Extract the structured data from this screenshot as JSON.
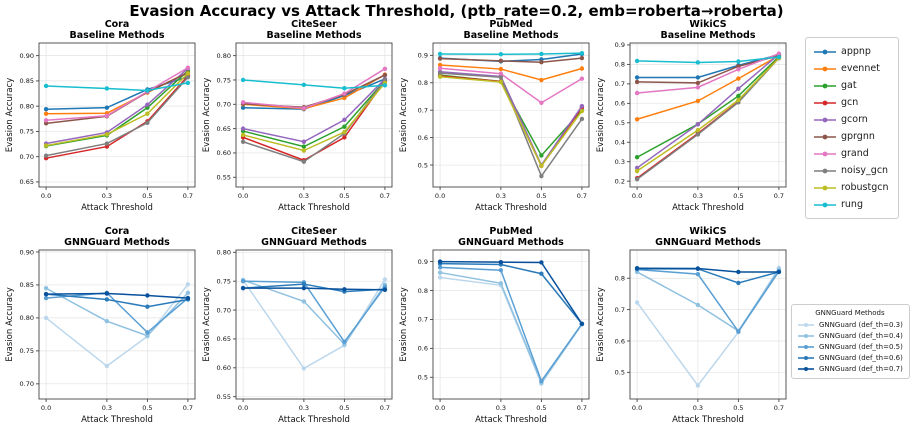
{
  "suptitle": "Evasion Accuracy vs Attack Threshold, (ptb_rate=0.2, emb=roberta→roberta)",
  "axis_labels": {
    "xlabel": "Attack Threshold",
    "ylabel": "Evasion Accuracy"
  },
  "legend_baseline": {
    "entries": [
      {
        "label": "appnp",
        "color": "#1f77b4"
      },
      {
        "label": "evennet",
        "color": "#ff7f0e"
      },
      {
        "label": "gat",
        "color": "#2ca02c"
      },
      {
        "label": "gcn",
        "color": "#d62728"
      },
      {
        "label": "gcorn",
        "color": "#9467bd"
      },
      {
        "label": "gprgnn",
        "color": "#8c564b"
      },
      {
        "label": "grand",
        "color": "#e377c2"
      },
      {
        "label": "noisy_gcn",
        "color": "#7f7f7f"
      },
      {
        "label": "robustgcn",
        "color": "#bcbd22"
      },
      {
        "label": "rung",
        "color": "#17becf"
      }
    ]
  },
  "legend_gnnguard": {
    "title": "GNNGuard Methods",
    "entries": [
      {
        "label": "GNNGuard (def_th=0.3)",
        "color": "#bcd7ec"
      },
      {
        "label": "GNNGuard (def_th=0.4)",
        "color": "#8fc1e0"
      },
      {
        "label": "GNNGuard (def_th=0.5)",
        "color": "#5a9fd4"
      },
      {
        "label": "GNNGuard (def_th=0.6)",
        "color": "#2b7bba"
      },
      {
        "label": "GNNGuard (def_th=0.7)",
        "color": "#08519c"
      }
    ]
  },
  "chart_data": [
    {
      "id": "cora-baseline",
      "type": "line",
      "title": "Cora",
      "subtitle": "Baseline Methods",
      "xlabel": "Attack Threshold",
      "ylabel": "Evasion Accuracy",
      "x": [
        0.0,
        0.3,
        0.5,
        0.7
      ],
      "xtick_labels": [
        "0.0",
        "0.3",
        "0.5",
        "0.7"
      ],
      "ylim": [
        0.64,
        0.925
      ],
      "yticks": [
        0.65,
        0.7,
        0.75,
        0.8,
        0.85,
        0.9
      ],
      "ytick_labels": [
        "0.65",
        "0.70",
        "0.75",
        "0.80",
        "0.85",
        "0.90"
      ],
      "grid": true,
      "legend_position": "outside-right",
      "series": [
        {
          "name": "appnp",
          "color": "#1f77b4",
          "values": [
            0.794,
            0.797,
            0.833,
            0.858
          ]
        },
        {
          "name": "evennet",
          "color": "#ff7f0e",
          "values": [
            0.785,
            0.786,
            0.827,
            0.867
          ]
        },
        {
          "name": "gat",
          "color": "#2ca02c",
          "values": [
            0.721,
            0.742,
            0.797,
            0.87
          ]
        },
        {
          "name": "gcn",
          "color": "#d62728",
          "values": [
            0.697,
            0.72,
            0.77,
            0.86
          ]
        },
        {
          "name": "gcorn",
          "color": "#9467bd",
          "values": [
            0.726,
            0.748,
            0.803,
            0.875
          ]
        },
        {
          "name": "gprgnn",
          "color": "#8c564b",
          "values": [
            0.766,
            0.78,
            0.828,
            0.866
          ]
        },
        {
          "name": "grand",
          "color": "#e377c2",
          "values": [
            0.772,
            0.781,
            0.829,
            0.876
          ]
        },
        {
          "name": "noisy_gcn",
          "color": "#7f7f7f",
          "values": [
            0.702,
            0.726,
            0.767,
            0.857
          ]
        },
        {
          "name": "robustgcn",
          "color": "#bcbd22",
          "values": [
            0.722,
            0.744,
            0.785,
            0.865
          ]
        },
        {
          "name": "rung",
          "color": "#17becf",
          "values": [
            0.84,
            0.835,
            0.831,
            0.846
          ]
        }
      ]
    },
    {
      "id": "citeseer-baseline",
      "type": "line",
      "title": "CiteSeer",
      "subtitle": "Baseline Methods",
      "xlabel": "Attack Threshold",
      "ylabel": "Evasion Accuracy",
      "x": [
        0.0,
        0.3,
        0.5,
        0.7
      ],
      "xtick_labels": [
        "0.0",
        "0.3",
        "0.5",
        "0.7"
      ],
      "ylim": [
        0.53,
        0.826
      ],
      "yticks": [
        0.55,
        0.6,
        0.65,
        0.7,
        0.75,
        0.8
      ],
      "ytick_labels": [
        "0.55",
        "0.60",
        "0.65",
        "0.70",
        "0.75",
        "0.80"
      ],
      "grid": true,
      "series": [
        {
          "name": "appnp",
          "color": "#1f77b4",
          "values": [
            0.693,
            0.69,
            0.718,
            0.752
          ]
        },
        {
          "name": "evennet",
          "color": "#ff7f0e",
          "values": [
            0.7,
            0.691,
            0.713,
            0.761
          ]
        },
        {
          "name": "gat",
          "color": "#2ca02c",
          "values": [
            0.645,
            0.613,
            0.654,
            0.749
          ]
        },
        {
          "name": "gcn",
          "color": "#d62728",
          "values": [
            0.632,
            0.585,
            0.632,
            0.748
          ]
        },
        {
          "name": "gcorn",
          "color": "#9467bd",
          "values": [
            0.65,
            0.623,
            0.668,
            0.752
          ]
        },
        {
          "name": "gprgnn",
          "color": "#8c564b",
          "values": [
            0.701,
            0.694,
            0.72,
            0.76
          ]
        },
        {
          "name": "grand",
          "color": "#e377c2",
          "values": [
            0.704,
            0.692,
            0.722,
            0.773
          ]
        },
        {
          "name": "noisy_gcn",
          "color": "#7f7f7f",
          "values": [
            0.623,
            0.582,
            0.64,
            0.75
          ]
        },
        {
          "name": "robustgcn",
          "color": "#bcbd22",
          "values": [
            0.637,
            0.605,
            0.643,
            0.744
          ]
        },
        {
          "name": "rung",
          "color": "#17becf",
          "values": [
            0.75,
            0.74,
            0.733,
            0.739
          ]
        }
      ]
    },
    {
      "id": "pubmed-baseline",
      "type": "line",
      "title": "PubMed",
      "subtitle": "Baseline Methods",
      "xlabel": "Attack Threshold",
      "ylabel": "Evasion Accuracy",
      "x": [
        0.0,
        0.3,
        0.5,
        0.7
      ],
      "xtick_labels": [
        "0.0",
        "0.3",
        "0.5",
        "0.7"
      ],
      "ylim": [
        0.42,
        0.945
      ],
      "yticks": [
        0.5,
        0.6,
        0.7,
        0.8,
        0.9
      ],
      "ytick_labels": [
        "0.5",
        "0.6",
        "0.7",
        "0.8",
        "0.9"
      ],
      "grid": true,
      "series": [
        {
          "name": "appnp",
          "color": "#1f77b4",
          "values": [
            0.89,
            0.878,
            0.885,
            0.905
          ]
        },
        {
          "name": "evennet",
          "color": "#ff7f0e",
          "values": [
            0.865,
            0.85,
            0.81,
            0.852
          ]
        },
        {
          "name": "gat",
          "color": "#2ca02c",
          "values": [
            0.828,
            0.805,
            0.535,
            0.7
          ]
        },
        {
          "name": "gcn",
          "color": "#d62728",
          "values": [
            0.825,
            0.805,
            0.497,
            0.71
          ]
        },
        {
          "name": "gcorn",
          "color": "#9467bd",
          "values": [
            0.84,
            0.823,
            0.5,
            0.715
          ]
        },
        {
          "name": "gprgnn",
          "color": "#8c564b",
          "values": [
            0.888,
            0.88,
            0.875,
            0.89
          ]
        },
        {
          "name": "grand",
          "color": "#e377c2",
          "values": [
            0.853,
            0.833,
            0.727,
            0.815
          ]
        },
        {
          "name": "noisy_gcn",
          "color": "#7f7f7f",
          "values": [
            0.835,
            0.82,
            0.46,
            0.668
          ]
        },
        {
          "name": "robustgcn",
          "color": "#bcbd22",
          "values": [
            0.822,
            0.803,
            0.497,
            0.697
          ]
        },
        {
          "name": "rung",
          "color": "#17becf",
          "values": [
            0.905,
            0.904,
            0.905,
            0.908
          ]
        }
      ]
    },
    {
      "id": "wikics-baseline",
      "type": "line",
      "title": "WikiCS",
      "subtitle": "Baseline Methods",
      "xlabel": "Attack Threshold",
      "ylabel": "Evasion Accuracy",
      "x": [
        0.0,
        0.3,
        0.5,
        0.7
      ],
      "xtick_labels": [
        "0.0",
        "0.3",
        "0.5",
        "0.7"
      ],
      "ylim": [
        0.17,
        0.91
      ],
      "yticks": [
        0.2,
        0.3,
        0.4,
        0.5,
        0.6,
        0.7,
        0.8,
        0.9
      ],
      "ytick_labels": [
        "0.2",
        "0.3",
        "0.4",
        "0.5",
        "0.6",
        "0.7",
        "0.8",
        "0.9"
      ],
      "grid": true,
      "series": [
        {
          "name": "appnp",
          "color": "#1f77b4",
          "values": [
            0.733,
            0.733,
            0.795,
            0.85
          ]
        },
        {
          "name": "evennet",
          "color": "#ff7f0e",
          "values": [
            0.518,
            0.612,
            0.727,
            0.845
          ]
        },
        {
          "name": "gat",
          "color": "#2ca02c",
          "values": [
            0.323,
            0.493,
            0.638,
            0.84
          ]
        },
        {
          "name": "gcn",
          "color": "#d62728",
          "values": [
            0.215,
            0.445,
            0.608,
            0.835
          ]
        },
        {
          "name": "gcorn",
          "color": "#9467bd",
          "values": [
            0.268,
            0.492,
            0.675,
            0.852
          ]
        },
        {
          "name": "gprgnn",
          "color": "#8c564b",
          "values": [
            0.71,
            0.705,
            0.79,
            0.845
          ]
        },
        {
          "name": "grand",
          "color": "#e377c2",
          "values": [
            0.653,
            0.682,
            0.775,
            0.855
          ]
        },
        {
          "name": "noisy_gcn",
          "color": "#7f7f7f",
          "values": [
            0.21,
            0.44,
            0.605,
            0.832
          ]
        },
        {
          "name": "robustgcn",
          "color": "#bcbd22",
          "values": [
            0.252,
            0.462,
            0.617,
            0.833
          ]
        },
        {
          "name": "rung",
          "color": "#17becf",
          "values": [
            0.818,
            0.81,
            0.815,
            0.838
          ]
        }
      ]
    },
    {
      "id": "cora-gnnguard",
      "type": "line",
      "title": "Cora",
      "subtitle": "GNNGuard Methods",
      "xlabel": "Attack Threshold",
      "ylabel": "Evasion Accuracy",
      "x": [
        0.0,
        0.3,
        0.5,
        0.7
      ],
      "xtick_labels": [
        "0.0",
        "0.3",
        "0.5",
        "0.7"
      ],
      "ylim": [
        0.677,
        0.903
      ],
      "yticks": [
        0.7,
        0.75,
        0.8,
        0.85,
        0.9
      ],
      "ytick_labels": [
        "0.70",
        "0.75",
        "0.80",
        "0.85",
        "0.90"
      ],
      "grid": true,
      "series": [
        {
          "name": "GNNGuard (def_th=0.3)",
          "color": "#bcd7ec",
          "values": [
            0.8,
            0.727,
            0.772,
            0.851
          ]
        },
        {
          "name": "GNNGuard (def_th=0.4)",
          "color": "#8fc1e0",
          "values": [
            0.845,
            0.795,
            0.773,
            0.838
          ]
        },
        {
          "name": "GNNGuard (def_th=0.5)",
          "color": "#5a9fd4",
          "values": [
            0.83,
            0.838,
            0.778,
            0.83
          ]
        },
        {
          "name": "GNNGuard (def_th=0.6)",
          "color": "#2b7bba",
          "values": [
            0.836,
            0.828,
            0.817,
            0.828
          ]
        },
        {
          "name": "GNNGuard (def_th=0.7)",
          "color": "#08519c",
          "values": [
            0.836,
            0.837,
            0.834,
            0.83
          ]
        }
      ]
    },
    {
      "id": "citeseer-gnnguard",
      "type": "line",
      "title": "CiteSeer",
      "subtitle": "GNNGuard Methods",
      "xlabel": "Attack Threshold",
      "ylabel": "Evasion Accuracy",
      "x": [
        0.0,
        0.3,
        0.5,
        0.7
      ],
      "xtick_labels": [
        "0.0",
        "0.3",
        "0.5",
        "0.7"
      ],
      "ylim": [
        0.546,
        0.804
      ],
      "yticks": [
        0.55,
        0.6,
        0.65,
        0.7,
        0.75,
        0.8
      ],
      "ytick_labels": [
        "0.55",
        "0.60",
        "0.65",
        "0.70",
        "0.75",
        "0.80"
      ],
      "grid": true,
      "series": [
        {
          "name": "GNNGuard (def_th=0.3)",
          "color": "#bcd7ec",
          "values": [
            0.752,
            0.599,
            0.639,
            0.753
          ]
        },
        {
          "name": "GNNGuard (def_th=0.4)",
          "color": "#8fc1e0",
          "values": [
            0.752,
            0.715,
            0.641,
            0.744
          ]
        },
        {
          "name": "GNNGuard (def_th=0.5)",
          "color": "#5a9fd4",
          "values": [
            0.75,
            0.748,
            0.645,
            0.74
          ]
        },
        {
          "name": "GNNGuard (def_th=0.6)",
          "color": "#2b7bba",
          "values": [
            0.738,
            0.745,
            0.732,
            0.736
          ]
        },
        {
          "name": "GNNGuard (def_th=0.7)",
          "color": "#08519c",
          "values": [
            0.738,
            0.738,
            0.736,
            0.735
          ]
        }
      ]
    },
    {
      "id": "pubmed-gnnguard",
      "type": "line",
      "title": "PubMed",
      "subtitle": "GNNGuard Methods",
      "xlabel": "Attack Threshold",
      "ylabel": "Evasion Accuracy",
      "x": [
        0.0,
        0.3,
        0.5,
        0.7
      ],
      "xtick_labels": [
        "0.0",
        "0.3",
        "0.5",
        "0.7"
      ],
      "ylim": [
        0.425,
        0.94
      ],
      "yticks": [
        0.5,
        0.6,
        0.7,
        0.8,
        0.9
      ],
      "ytick_labels": [
        "0.5",
        "0.6",
        "0.7",
        "0.8",
        "0.9"
      ],
      "grid": true,
      "series": [
        {
          "name": "GNNGuard (def_th=0.3)",
          "color": "#bcd7ec",
          "values": [
            0.845,
            0.818,
            0.478,
            0.683
          ]
        },
        {
          "name": "GNNGuard (def_th=0.4)",
          "color": "#8fc1e0",
          "values": [
            0.862,
            0.825,
            0.482,
            0.683
          ]
        },
        {
          "name": "GNNGuard (def_th=0.5)",
          "color": "#5a9fd4",
          "values": [
            0.88,
            0.87,
            0.487,
            0.685
          ]
        },
        {
          "name": "GNNGuard (def_th=0.6)",
          "color": "#2b7bba",
          "values": [
            0.893,
            0.89,
            0.858,
            0.685
          ]
        },
        {
          "name": "GNNGuard (def_th=0.7)",
          "color": "#08519c",
          "values": [
            0.9,
            0.898,
            0.897,
            0.685
          ]
        }
      ]
    },
    {
      "id": "wikics-gnnguard",
      "type": "line",
      "title": "WikiCS",
      "subtitle": "GNNGuard Methods",
      "xlabel": "Attack Threshold",
      "ylabel": "Evasion Accuracy",
      "x": [
        0.0,
        0.3,
        0.5,
        0.7
      ],
      "xtick_labels": [
        "0.0",
        "0.3",
        "0.5",
        "0.7"
      ],
      "ylim": [
        0.415,
        0.89
      ],
      "yticks": [
        0.5,
        0.6,
        0.7,
        0.8
      ],
      "ytick_labels": [
        "0.5",
        "0.6",
        "0.7",
        "0.8"
      ],
      "grid": true,
      "series": [
        {
          "name": "GNNGuard (def_th=0.3)",
          "color": "#bcd7ec",
          "values": [
            0.723,
            0.458,
            0.628,
            0.833
          ]
        },
        {
          "name": "GNNGuard (def_th=0.4)",
          "color": "#8fc1e0",
          "values": [
            0.82,
            0.715,
            0.632,
            0.828
          ]
        },
        {
          "name": "GNNGuard (def_th=0.5)",
          "color": "#5a9fd4",
          "values": [
            0.828,
            0.813,
            0.63,
            0.822
          ]
        },
        {
          "name": "GNNGuard (def_th=0.6)",
          "color": "#2b7bba",
          "values": [
            0.83,
            0.83,
            0.785,
            0.82
          ]
        },
        {
          "name": "GNNGuard (def_th=0.7)",
          "color": "#08519c",
          "values": [
            0.832,
            0.831,
            0.82,
            0.82
          ]
        }
      ]
    }
  ]
}
